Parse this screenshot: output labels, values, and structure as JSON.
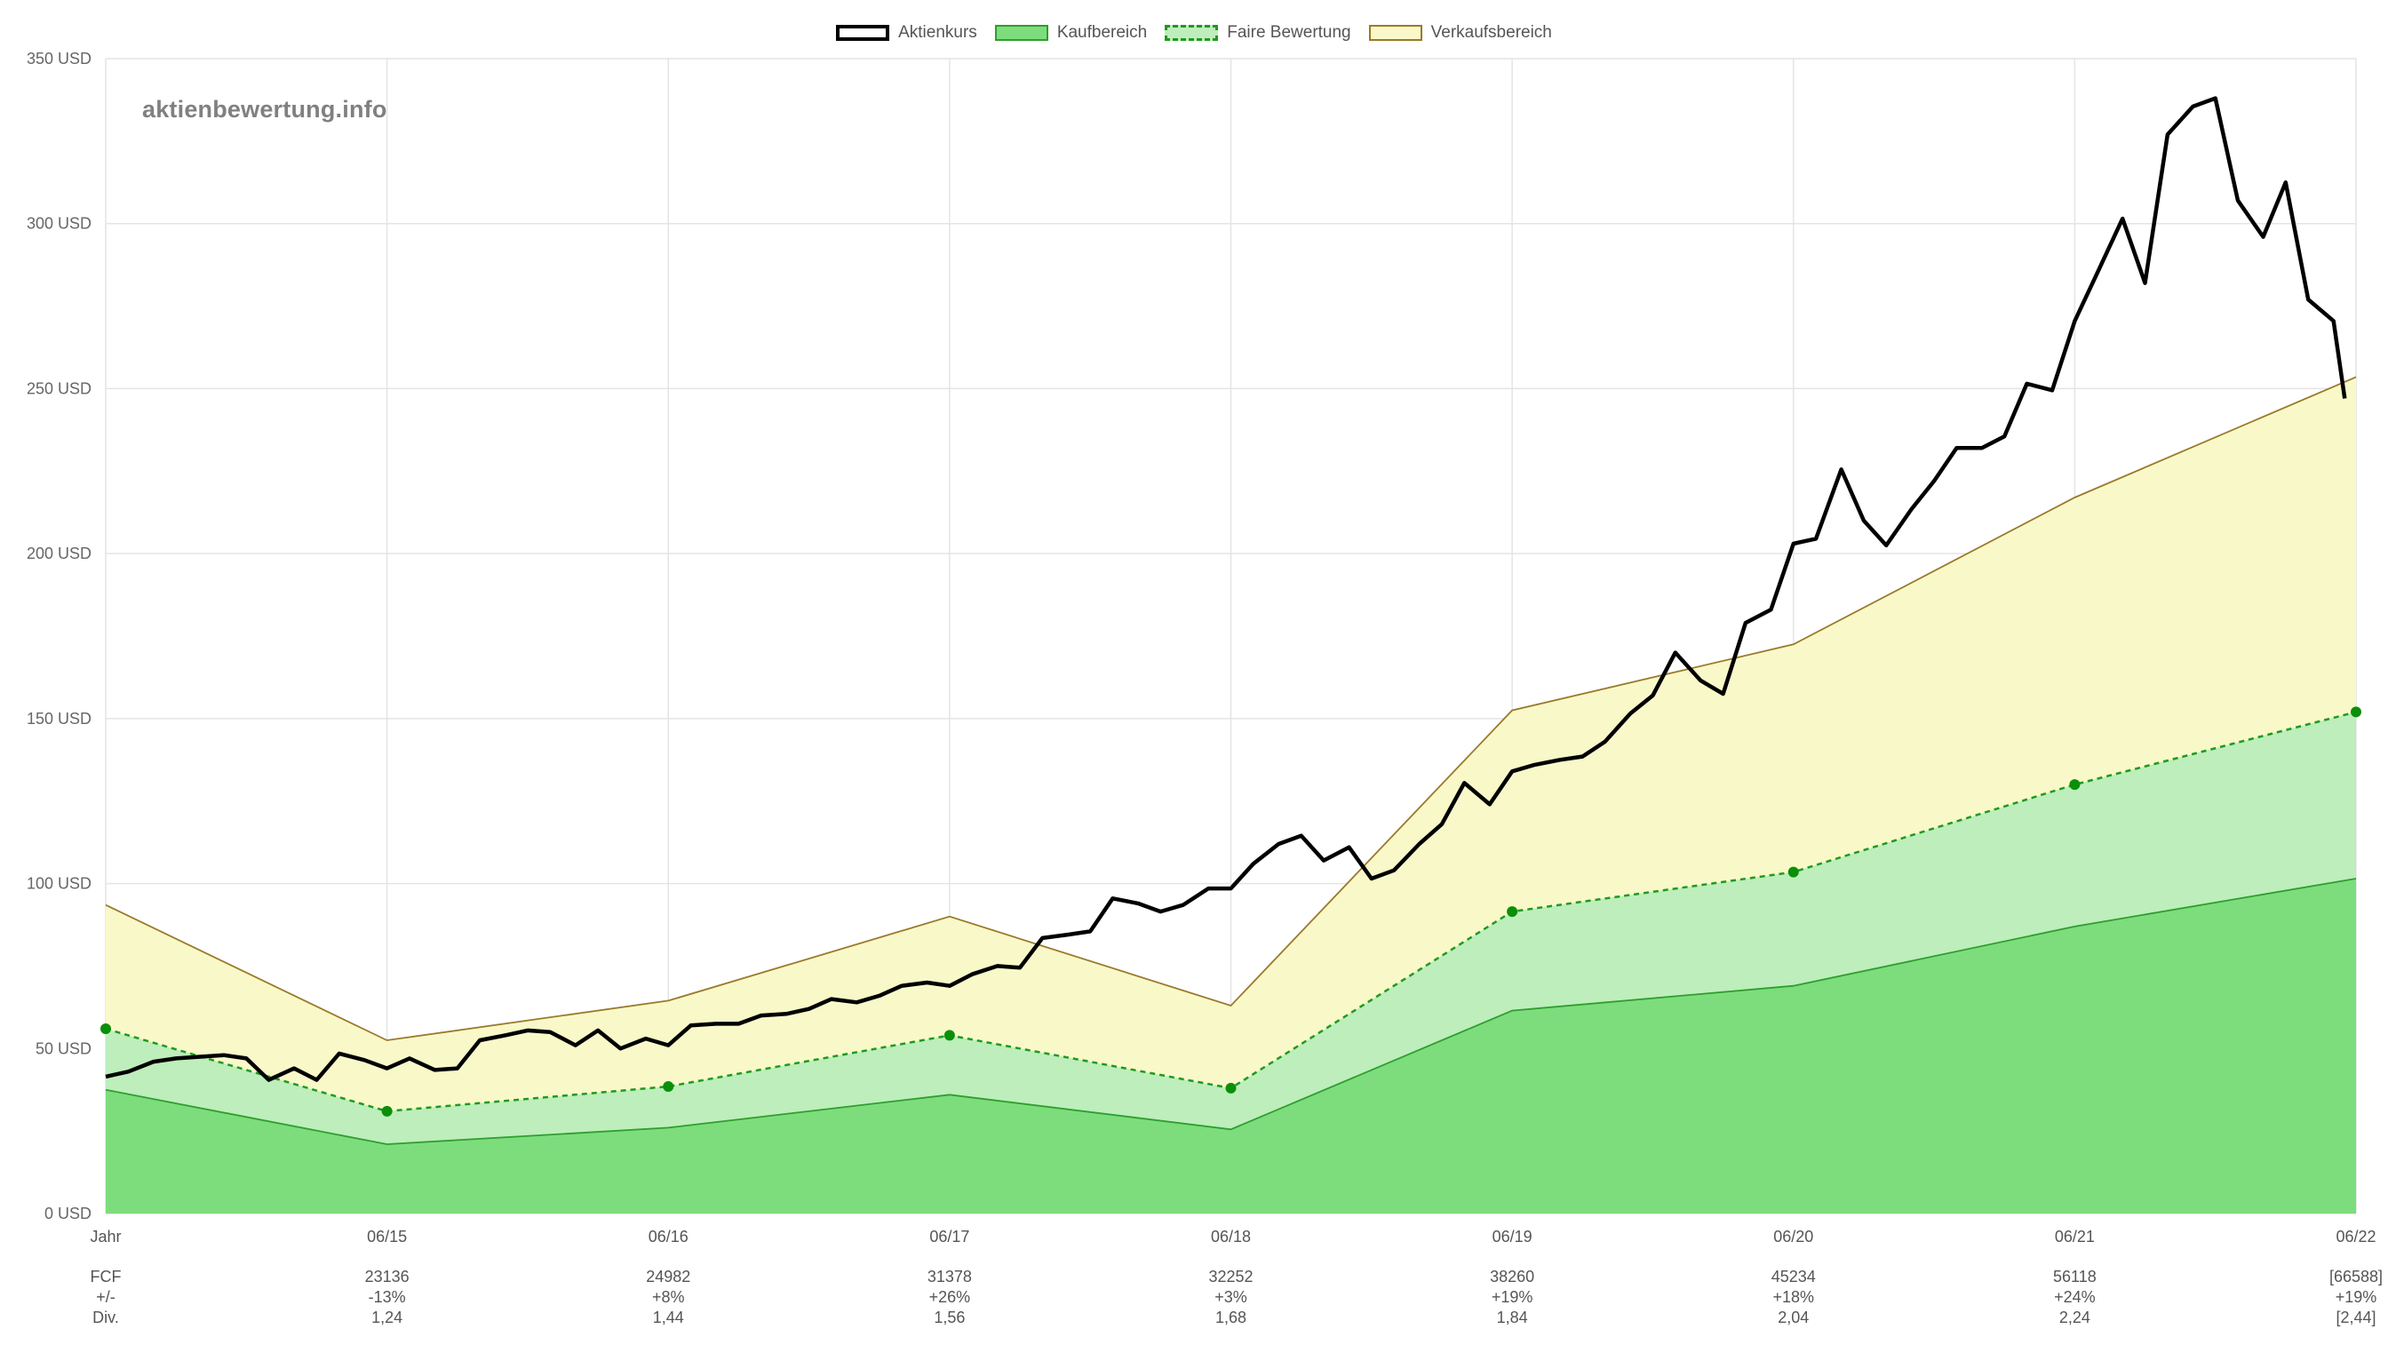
{
  "watermark": "aktienbewertung.info",
  "legend": [
    {
      "label": "Aktienkurs",
      "fill": "#ffffff",
      "stroke": "#000000",
      "dashed": false
    },
    {
      "label": "Kaufbereich",
      "fill": "#7ddd7d",
      "stroke": "#2e9e2e",
      "dashed": false
    },
    {
      "label": "Faire Bewertung",
      "fill": "#bdeebb",
      "stroke": "#1f9a1f",
      "dashed": true
    },
    {
      "label": "Verkaufsbereich",
      "fill": "#f9f8c9",
      "stroke": "#9a7a2a",
      "dashed": false
    }
  ],
  "chart_data": {
    "type": "area",
    "y_axis": {
      "min": 0,
      "max": 350,
      "step": 50,
      "unit": "USD",
      "tick_labels": [
        "0 USD",
        "50 USD",
        "100 USD",
        "150 USD",
        "200 USD",
        "250 USD",
        "300 USD",
        "350 USD"
      ]
    },
    "grid": true,
    "legend_position": "top-center",
    "x_labels": [
      "Jahr",
      "06/15",
      "06/16",
      "06/17",
      "06/18",
      "06/19",
      "06/20",
      "06/21",
      "06/22"
    ],
    "row_labels": [
      "FCF",
      "+/-",
      "Div."
    ],
    "table": [
      {
        "fcf": "23136",
        "change": "-13%",
        "div": "1,24"
      },
      {
        "fcf": "24982",
        "change": "+8%",
        "div": "1,44"
      },
      {
        "fcf": "31378",
        "change": "+26%",
        "div": "1,56"
      },
      {
        "fcf": "32252",
        "change": "+3%",
        "div": "1,68"
      },
      {
        "fcf": "38260",
        "change": "+19%",
        "div": "1,84"
      },
      {
        "fcf": "45234",
        "change": "+18%",
        "div": "2,04"
      },
      {
        "fcf": "56118",
        "change": "+24%",
        "div": "2,24"
      },
      {
        "fcf": "[66588]",
        "change": "+19%",
        "div": "[2,44]"
      }
    ],
    "series": [
      {
        "name": "Kaufbereich",
        "x": [
          0,
          1,
          2,
          3,
          4,
          5,
          6,
          7,
          8
        ],
        "values": [
          37.5,
          21,
          26,
          36,
          25.5,
          61.5,
          69,
          87,
          101.5
        ]
      },
      {
        "name": "Faire Bewertung",
        "x": [
          0,
          1,
          2,
          3,
          4,
          5,
          6,
          7,
          8
        ],
        "values": [
          56,
          31,
          38.5,
          54,
          38,
          91.5,
          103.5,
          130,
          152
        ]
      },
      {
        "name": "Verkaufsbereich",
        "x": [
          0,
          1,
          2,
          3,
          4,
          5,
          6,
          7,
          8
        ],
        "values": [
          93.5,
          52.5,
          64.5,
          90,
          63,
          152.5,
          172.5,
          217,
          253.5
        ]
      },
      {
        "name": "Aktienkurs",
        "x": [
          0,
          0.08,
          0.17,
          0.25,
          0.33,
          0.42,
          0.5,
          0.58,
          0.67,
          0.75,
          0.83,
          0.92,
          1,
          1.08,
          1.17,
          1.25,
          1.33,
          1.42,
          1.5,
          1.58,
          1.67,
          1.75,
          1.83,
          1.92,
          2,
          2.08,
          2.17,
          2.25,
          2.33,
          2.42,
          2.5,
          2.58,
          2.67,
          2.75,
          2.83,
          2.92,
          3,
          3.08,
          3.17,
          3.25,
          3.33,
          3.42,
          3.5,
          3.58,
          3.67,
          3.75,
          3.83,
          3.92,
          4,
          4.08,
          4.17,
          4.25,
          4.33,
          4.42,
          4.5,
          4.58,
          4.67,
          4.75,
          4.83,
          4.92,
          5,
          5.08,
          5.17,
          5.25,
          5.33,
          5.42,
          5.5,
          5.58,
          5.67,
          5.75,
          5.83,
          5.92,
          6,
          6.08,
          6.17,
          6.25,
          6.33,
          6.42,
          6.5,
          6.58,
          6.67,
          6.75,
          6.83,
          6.92,
          7,
          7.08,
          7.17,
          7.25,
          7.33,
          7.42,
          7.5,
          7.58,
          7.67,
          7.75,
          7.83,
          7.92,
          7.96
        ],
        "values": [
          41.5,
          43,
          46,
          47,
          47.5,
          48,
          47,
          40.5,
          44,
          40.5,
          48.5,
          46.5,
          44,
          47,
          43.5,
          44,
          52.5,
          54,
          55.5,
          55,
          51,
          55.5,
          50,
          53,
          51,
          57,
          57.5,
          57.5,
          60,
          60.5,
          62,
          65,
          64,
          66,
          69,
          70,
          69,
          72.5,
          75,
          74.5,
          83.5,
          84.5,
          85.5,
          95.5,
          94,
          91.5,
          93.5,
          98.5,
          98.5,
          106,
          112,
          114.5,
          107,
          111,
          101.5,
          104,
          112,
          118,
          130.5,
          124,
          134,
          136,
          137.5,
          138.5,
          143,
          151.5,
          157,
          170,
          161.5,
          157.5,
          179,
          183,
          203,
          204.5,
          225.5,
          210,
          202.5,
          213.5,
          222,
          232,
          232,
          235.5,
          251.5,
          249.5,
          270.5,
          285,
          301.5,
          282,
          327,
          335.5,
          338,
          307,
          296,
          312.5,
          277,
          270.5,
          247
        ]
      }
    ]
  }
}
